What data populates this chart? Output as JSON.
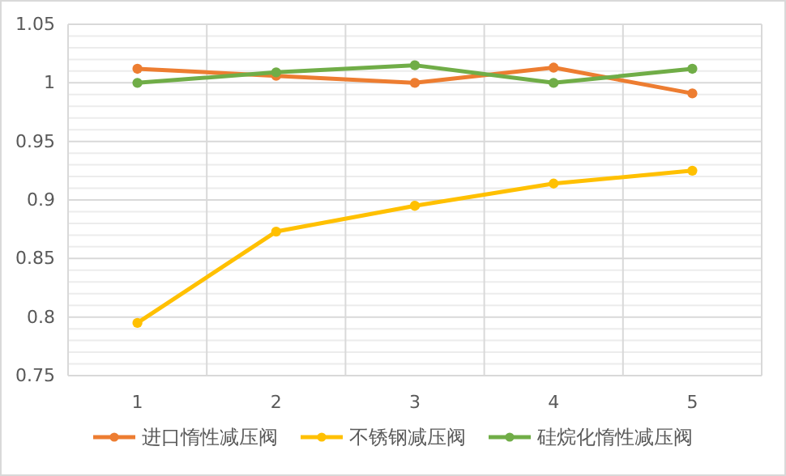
{
  "chart_data": {
    "type": "line",
    "categories": [
      "1",
      "2",
      "3",
      "4",
      "5"
    ],
    "series": [
      {
        "name": "进口惰性减压阀",
        "color": "#ed7d31",
        "values": [
          1.012,
          1.006,
          1.0,
          1.013,
          0.991
        ]
      },
      {
        "name": "不锈钢减压阀",
        "color": "#ffc000",
        "values": [
          0.795,
          0.873,
          0.895,
          0.914,
          0.925
        ]
      },
      {
        "name": "硅烷化惰性减压阀",
        "color": "#70ad47",
        "values": [
          1.0,
          1.009,
          1.015,
          1.0,
          1.012
        ]
      }
    ],
    "ylim": [
      0.75,
      1.05
    ],
    "yticks": [
      0.75,
      {
        "value": 0.76,
        "label": null
      },
      {
        "value": 0.77,
        "label": null
      },
      {
        "value": 0.78,
        "label": null
      },
      {
        "value": 0.79,
        "label": null
      },
      0.8,
      {
        "value": 0.81,
        "label": null
      },
      {
        "value": 0.82,
        "label": null
      },
      {
        "value": 0.83,
        "label": null
      },
      {
        "value": 0.84,
        "label": null
      },
      0.85,
      {
        "value": 0.86,
        "label": null
      },
      {
        "value": 0.87,
        "label": null
      },
      {
        "value": 0.88,
        "label": null
      },
      {
        "value": 0.89,
        "label": null
      },
      0.9,
      {
        "value": 0.91,
        "label": null
      },
      {
        "value": 0.92,
        "label": null
      },
      {
        "value": 0.93,
        "label": null
      },
      {
        "value": 0.94,
        "label": null
      },
      0.95,
      {
        "value": 0.96,
        "label": null
      },
      {
        "value": 0.97,
        "label": null
      },
      {
        "value": 0.98,
        "label": null
      },
      {
        "value": 0.99,
        "label": null
      },
      1,
      {
        "value": 1.01,
        "label": null
      },
      {
        "value": 1.02,
        "label": null
      },
      {
        "value": 1.03,
        "label": null
      },
      {
        "value": 1.04,
        "label": null
      },
      1.05
    ],
    "grid": true,
    "legend": "bottom",
    "marker": "circle",
    "line_style": "solid"
  }
}
